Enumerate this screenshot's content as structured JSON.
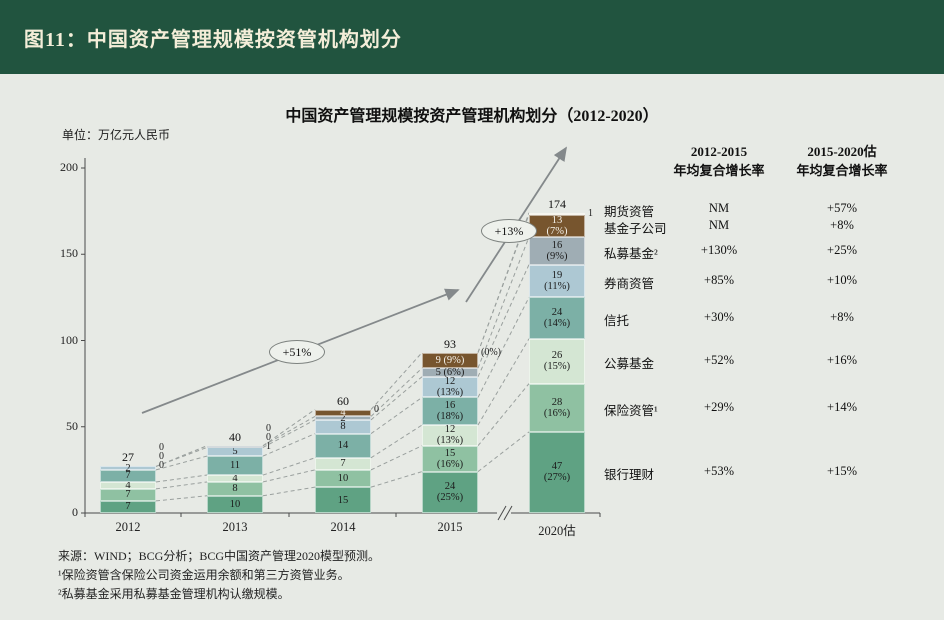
{
  "header": {
    "title": "图11：中国资产管理规模按资管机构划分"
  },
  "colors": {
    "header_bg": "#21543f",
    "header_text": "#f4eed9",
    "page_bg": "#e7eae5",
    "axis": "#4a4a4a",
    "connector": "#9aa09e",
    "arrow": "#84898b"
  },
  "chart_data": {
    "type": "bar",
    "stacked": true,
    "title": "中国资产管理规模按资产管理机构划分（2012-2020）",
    "unit_label": "单位：万亿元人民币",
    "categories": [
      "2012",
      "2013",
      "2014",
      "2015",
      "2020估"
    ],
    "totals": [
      27,
      40,
      60,
      93,
      174
    ],
    "ylim": [
      0,
      200
    ],
    "yticks": [
      0,
      50,
      100,
      150,
      200
    ],
    "series": [
      {
        "name": "银行理财",
        "color": "#5fa283",
        "values": [
          7,
          10,
          15,
          24,
          47
        ],
        "pcts": [
          null,
          null,
          null,
          "25%",
          "27%"
        ]
      },
      {
        "name": "保险资管¹",
        "color": "#8fc1a2",
        "values": [
          7,
          8,
          10,
          15,
          28
        ],
        "pcts": [
          null,
          null,
          null,
          "16%",
          "16%"
        ]
      },
      {
        "name": "公募基金",
        "color": "#d4e6d3",
        "values": [
          4,
          4,
          7,
          12,
          26
        ],
        "pcts": [
          null,
          null,
          null,
          "13%",
          "15%"
        ]
      },
      {
        "name": "信托",
        "color": "#7cb0a6",
        "values": [
          7,
          11,
          14,
          16,
          24
        ],
        "pcts": [
          null,
          null,
          null,
          "18%",
          "14%"
        ]
      },
      {
        "name": "券商资管",
        "color": "#adc8d3",
        "values": [
          2,
          5,
          8,
          12,
          19
        ],
        "pcts": [
          null,
          null,
          null,
          "13%",
          "11%"
        ]
      },
      {
        "name": "私募基金²",
        "color": "#9fadb4",
        "values": [
          0,
          1,
          2,
          5,
          16
        ],
        "pcts": [
          null,
          null,
          null,
          "6%",
          "9%"
        ]
      },
      {
        "name": "基金子公司",
        "color": "#77552e",
        "text_color": "#f5f2ea",
        "values": [
          0,
          0,
          4,
          9,
          13
        ],
        "pcts": [
          null,
          null,
          null,
          "9%",
          "7%"
        ]
      },
      {
        "name": "期货资管",
        "color": "#ece8db",
        "values": [
          0,
          0,
          0,
          0,
          1
        ],
        "pcts": [
          null,
          null,
          null,
          "0%",
          null
        ]
      }
    ],
    "growth_badges": [
      {
        "label": "+51%"
      },
      {
        "label": "+13%"
      }
    ]
  },
  "growth_table": {
    "columns": [
      {
        "line1": "2012-2015",
        "line2": "年均复合增长率"
      },
      {
        "line1": "2015-2020估",
        "line2": "年均复合增长率"
      }
    ],
    "rows": [
      {
        "name": "期货资管",
        "cagr_2012_2015": "NM",
        "cagr_2015_2020": "+57%"
      },
      {
        "name": "基金子公司",
        "cagr_2012_2015": "NM",
        "cagr_2015_2020": "+8%"
      },
      {
        "name": "私募基金²",
        "cagr_2012_2015": "+130%",
        "cagr_2015_2020": "+25%"
      },
      {
        "name": "券商资管",
        "cagr_2012_2015": "+85%",
        "cagr_2015_2020": "+10%"
      },
      {
        "name": "信托",
        "cagr_2012_2015": "+30%",
        "cagr_2015_2020": "+8%"
      },
      {
        "name": "公募基金",
        "cagr_2012_2015": "+52%",
        "cagr_2015_2020": "+16%"
      },
      {
        "name": "保险资管¹",
        "cagr_2012_2015": "+29%",
        "cagr_2015_2020": "+14%"
      },
      {
        "name": "银行理财",
        "cagr_2012_2015": "+53%",
        "cagr_2015_2020": "+15%"
      }
    ]
  },
  "footnotes": [
    "来源：WIND；BCG分析；BCG中国资产管理2020模型预测。",
    "¹保险资管含保险公司资金运用余额和第三方资管业务。",
    "²私募基金采用私募基金管理机构认缴规模。"
  ]
}
